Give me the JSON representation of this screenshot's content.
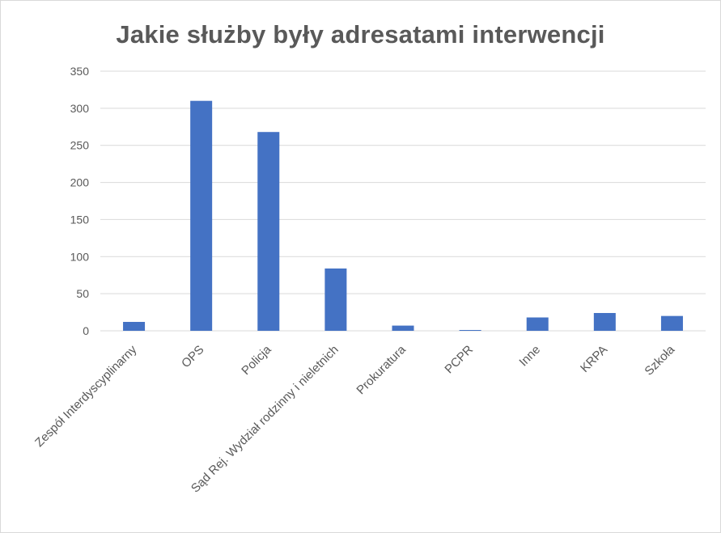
{
  "chart_data": {
    "type": "bar",
    "title": "Jakie służby były adresatami interwencji",
    "categories": [
      "Zespół Interdyscyplinarny",
      "OPS",
      "Policja",
      "Sąd Rej. Wydział rodzinny i nieletnich",
      "Prokuratura",
      "PCPR",
      "Inne",
      "KRPA",
      "Szkoła"
    ],
    "values": [
      12,
      310,
      268,
      84,
      7,
      1,
      18,
      24,
      20
    ],
    "ylim": [
      0,
      350
    ],
    "yticks": [
      0,
      50,
      100,
      150,
      200,
      250,
      300,
      350
    ],
    "xlabel": "",
    "ylabel": "",
    "grid": true,
    "legend": "none",
    "colors": {
      "bar": "#4472c4",
      "grid": "#d9d9d9",
      "text": "#595959"
    }
  }
}
